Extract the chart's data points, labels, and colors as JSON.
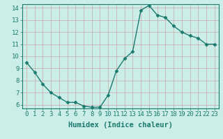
{
  "x": [
    0,
    1,
    2,
    3,
    4,
    5,
    6,
    7,
    8,
    9,
    10,
    11,
    12,
    13,
    14,
    15,
    16,
    17,
    18,
    19,
    20,
    21,
    22,
    23
  ],
  "y": [
    9.5,
    8.7,
    7.7,
    7.0,
    6.6,
    6.2,
    6.2,
    5.9,
    5.8,
    5.8,
    6.8,
    8.8,
    9.8,
    10.4,
    13.8,
    14.2,
    13.4,
    13.2,
    12.5,
    12.0,
    11.7,
    11.5,
    11.0,
    11.0
  ],
  "line_color": "#1a7a6e",
  "marker": "D",
  "marker_size": 2.5,
  "xlabel": "Humidex (Indice chaleur)",
  "xlim_min": -0.5,
  "xlim_max": 23.5,
  "ylim_min": 5.7,
  "ylim_max": 14.3,
  "yticks": [
    6,
    7,
    8,
    9,
    10,
    11,
    12,
    13,
    14
  ],
  "xticks": [
    0,
    1,
    2,
    3,
    4,
    5,
    6,
    7,
    8,
    9,
    10,
    11,
    12,
    13,
    14,
    15,
    16,
    17,
    18,
    19,
    20,
    21,
    22,
    23
  ],
  "bg_color": "#cceee8",
  "grid_color": "#c8a8a8",
  "line_width": 1.0,
  "xlabel_fontsize": 7.5,
  "tick_fontsize": 6.5
}
